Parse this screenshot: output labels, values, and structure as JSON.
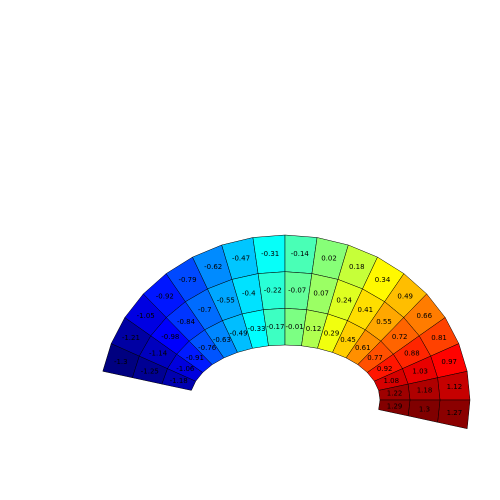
{
  "chart_data": {
    "type": "polar-surface",
    "clim": [
      -1.3,
      1.3
    ],
    "values": [
      [
        -1.3,
        -1.21,
        -1.05,
        -0.92,
        -0.79,
        -0.62,
        -0.47,
        -0.31,
        -0.14,
        0.02,
        0.18,
        0.34,
        0.49,
        0.66,
        0.81,
        0.97,
        1.12,
        1.27
      ],
      [
        -1.25,
        -1.14,
        -0.98,
        -0.84,
        -0.7,
        -0.55,
        -0.4,
        -0.22,
        -0.07,
        0.07,
        0.24,
        0.41,
        0.55,
        0.72,
        0.88,
        1.03,
        1.18,
        1.3
      ],
      [
        -1.18,
        -1.06,
        -0.91,
        -0.76,
        -0.63,
        -0.49,
        -0.33,
        -0.17,
        -0.01,
        0.12,
        0.29,
        0.45,
        0.61,
        0.77,
        0.92,
        1.08,
        1.22,
        1.29
      ]
    ]
  }
}
